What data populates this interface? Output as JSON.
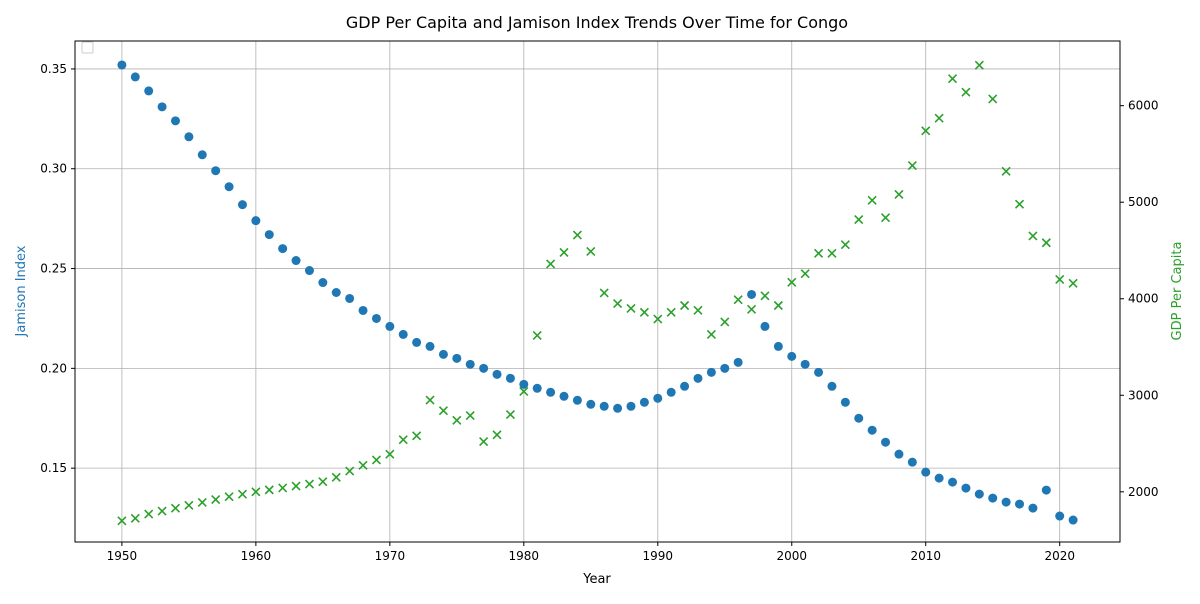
{
  "chart_data": {
    "type": "scatter",
    "title": "GDP Per Capita and Jamison Index Trends Over Time for Congo",
    "xlabel": "Year",
    "ylabel_left": "Jamison Index",
    "ylabel_right": "GDP Per Capita",
    "xlim": [
      1946.5,
      2024.5
    ],
    "ylim_left": [
      0.113,
      0.364
    ],
    "ylim_right": [
      1480,
      6670
    ],
    "x_ticks": [
      1950,
      1960,
      1970,
      1980,
      1990,
      2000,
      2010,
      2020
    ],
    "y_ticks_left": [
      0.15,
      0.2,
      0.25,
      0.3,
      0.35
    ],
    "y_ticks_right": [
      2000,
      3000,
      4000,
      5000,
      6000
    ],
    "grid": true,
    "legend_position": "upper-left (empty)",
    "colors": {
      "jamison": "#1f77b4",
      "gdp": "#2ca02c"
    },
    "series": [
      {
        "name": "Jamison Index",
        "axis": "left",
        "marker": "circle",
        "x": [
          1950,
          1951,
          1952,
          1953,
          1954,
          1955,
          1956,
          1957,
          1958,
          1959,
          1960,
          1961,
          1962,
          1963,
          1964,
          1965,
          1966,
          1967,
          1968,
          1969,
          1970,
          1971,
          1972,
          1973,
          1974,
          1975,
          1976,
          1977,
          1978,
          1979,
          1980,
          1981,
          1982,
          1983,
          1984,
          1985,
          1986,
          1987,
          1988,
          1989,
          1990,
          1991,
          1992,
          1993,
          1994,
          1995,
          1996,
          1997,
          1998,
          1999,
          2000,
          2001,
          2002,
          2003,
          2004,
          2005,
          2006,
          2007,
          2008,
          2009,
          2010,
          2011,
          2012,
          2013,
          2014,
          2015,
          2016,
          2017,
          2018,
          2019,
          2020,
          2021
        ],
        "values": [
          0.352,
          0.346,
          0.339,
          0.331,
          0.324,
          0.316,
          0.307,
          0.299,
          0.291,
          0.282,
          0.274,
          0.267,
          0.26,
          0.254,
          0.249,
          0.243,
          0.238,
          0.235,
          0.229,
          0.225,
          0.221,
          0.217,
          0.213,
          0.211,
          0.207,
          0.205,
          0.202,
          0.2,
          0.197,
          0.195,
          0.192,
          0.19,
          0.188,
          0.186,
          0.184,
          0.182,
          0.181,
          0.18,
          0.181,
          0.183,
          0.185,
          0.188,
          0.191,
          0.195,
          0.198,
          0.2,
          0.203,
          0.237,
          0.221,
          0.211,
          0.206,
          0.202,
          0.198,
          0.191,
          0.183,
          0.175,
          0.169,
          0.163,
          0.157,
          0.153,
          0.148,
          0.145,
          0.143,
          0.14,
          0.137,
          0.135,
          0.133,
          0.132,
          0.13,
          0.139,
          0.126,
          0.124
        ]
      },
      {
        "name": "GDP Per Capita",
        "axis": "right",
        "marker": "x",
        "x": [
          1950,
          1951,
          1952,
          1953,
          1954,
          1955,
          1956,
          1957,
          1958,
          1959,
          1960,
          1961,
          1962,
          1963,
          1964,
          1965,
          1966,
          1967,
          1968,
          1969,
          1970,
          1971,
          1972,
          1973,
          1974,
          1975,
          1976,
          1977,
          1978,
          1979,
          1980,
          1981,
          1982,
          1983,
          1984,
          1985,
          1986,
          1987,
          1988,
          1989,
          1990,
          1991,
          1992,
          1993,
          1994,
          1995,
          1996,
          1997,
          1998,
          1999,
          2000,
          2001,
          2002,
          2003,
          2004,
          2005,
          2006,
          2007,
          2008,
          2009,
          2010,
          2011,
          2012,
          2013,
          2014,
          2015,
          2016,
          2017,
          2018,
          2019,
          2020,
          2021
        ],
        "values": [
          1700,
          1725,
          1770,
          1800,
          1830,
          1860,
          1890,
          1920,
          1950,
          1975,
          2000,
          2020,
          2040,
          2060,
          2080,
          2105,
          2150,
          2215,
          2275,
          2330,
          2390,
          2540,
          2580,
          2950,
          2840,
          2740,
          2790,
          2520,
          2590,
          2800,
          3040,
          3620,
          4360,
          4480,
          4660,
          4490,
          4060,
          3950,
          3900,
          3860,
          3790,
          3860,
          3930,
          3880,
          3630,
          3760,
          3990,
          3890,
          4030,
          3930,
          4170,
          4260,
          4470,
          4470,
          4560,
          4820,
          5020,
          4840,
          5080,
          5380,
          5740,
          5870,
          6280,
          6140,
          6420,
          6070,
          5320,
          4980,
          4650,
          4580,
          4200,
          4160
        ]
      }
    ]
  }
}
